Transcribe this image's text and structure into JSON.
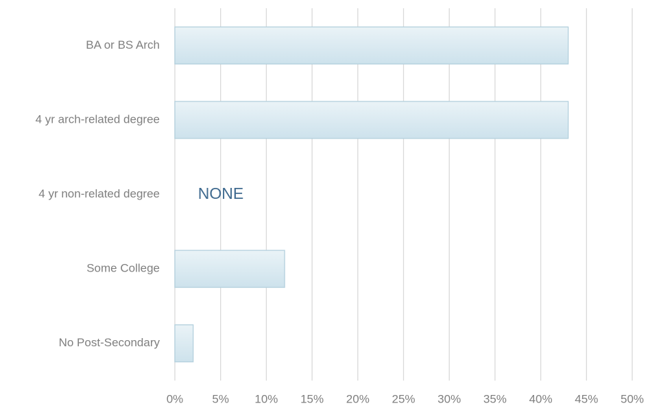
{
  "chart_data": {
    "type": "hbar",
    "categories": [
      "BA or BS Arch",
      "4 yr arch-related degree",
      "4 yr non-related degree",
      "Some College",
      "No Post-Secondary"
    ],
    "values": [
      43,
      43,
      0,
      12,
      2
    ],
    "color": "#d7e8f0",
    "edge_color": "#b3d0dd",
    "xlim": [
      0,
      50
    ],
    "xticks": [
      {
        "value": 0,
        "label": "0%"
      },
      {
        "value": 5,
        "label": "5%"
      },
      {
        "value": 10,
        "label": "10%"
      },
      {
        "value": 15,
        "label": "15%"
      },
      {
        "value": 20,
        "label": "20%"
      },
      {
        "value": 25,
        "label": "25%"
      },
      {
        "value": 30,
        "label": "30%"
      },
      {
        "value": 35,
        "label": "35%"
      },
      {
        "value": 40,
        "label": "40%"
      },
      {
        "value": 45,
        "label": "45%"
      },
      {
        "value": 50,
        "label": "50%"
      }
    ],
    "grid": true,
    "annotation": "NONE"
  }
}
